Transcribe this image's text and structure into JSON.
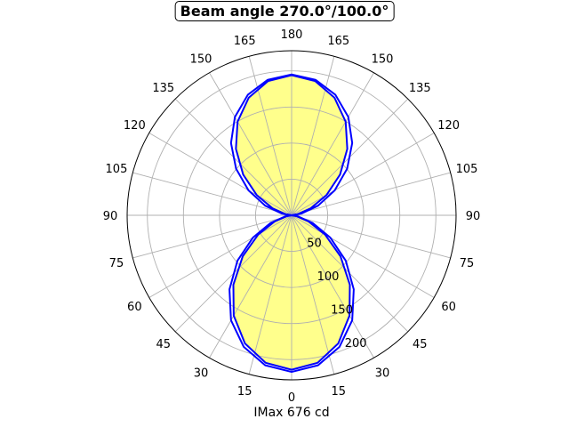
{
  "chart_data": {
    "type": "polar-line",
    "title": "Beam angle 270.0°/100.0°",
    "xlabel": "IMax 676 cd",
    "rlim": [
      0,
      228
    ],
    "r_ticks": [
      "50",
      "100",
      "150",
      "200"
    ],
    "r_tick_values": [
      50,
      100,
      150,
      200
    ],
    "theta_ticks_right": [
      "0",
      "15",
      "30",
      "45",
      "60",
      "75",
      "90",
      "105",
      "120",
      "135",
      "150",
      "165",
      "180"
    ],
    "theta_ticks_left": [
      "15",
      "30",
      "45",
      "60",
      "75",
      "90",
      "105",
      "120",
      "135",
      "150",
      "165"
    ],
    "theta_tick_values_right": [
      0,
      15,
      30,
      45,
      60,
      75,
      90,
      105,
      120,
      135,
      150,
      165,
      180
    ],
    "theta_tick_values_left": [
      15,
      30,
      45,
      60,
      75,
      90,
      105,
      120,
      135,
      150,
      165
    ],
    "grid": true,
    "symmetric": true,
    "line_color": "#0000ff",
    "fill_color": "#ffff8c",
    "grid_color": "#b0b0b0",
    "series": [
      {
        "gamma": [
          0,
          10,
          20,
          30,
          40,
          50,
          60,
          70,
          80,
          90
        ],
        "values": [
          217,
          211,
          194,
          168,
          134,
          98,
          62,
          31,
          9,
          0
        ]
      },
      {
        "gamma": [
          0,
          10,
          20,
          30,
          40,
          50,
          60,
          70,
          80,
          90
        ],
        "values": [
          214,
          207.5,
          189,
          160.5,
          125.6,
          88.4,
          53.5,
          25,
          6.5,
          0
        ]
      },
      {
        "gamma": [
          180,
          170,
          160,
          150,
          140,
          130,
          120,
          110,
          100,
          90
        ],
        "values": [
          195,
          190.6,
          177.6,
          157.2,
          130.7,
          100.5,
          69,
          39,
          14.1,
          0
        ]
      },
      {
        "gamma": [
          180,
          170,
          160,
          150,
          140,
          130,
          120,
          110,
          100,
          90
        ],
        "values": [
          194,
          188.7,
          173.5,
          149.8,
          120.1,
          87.6,
          55.7,
          28.1,
          8.3,
          0
        ]
      }
    ]
  }
}
